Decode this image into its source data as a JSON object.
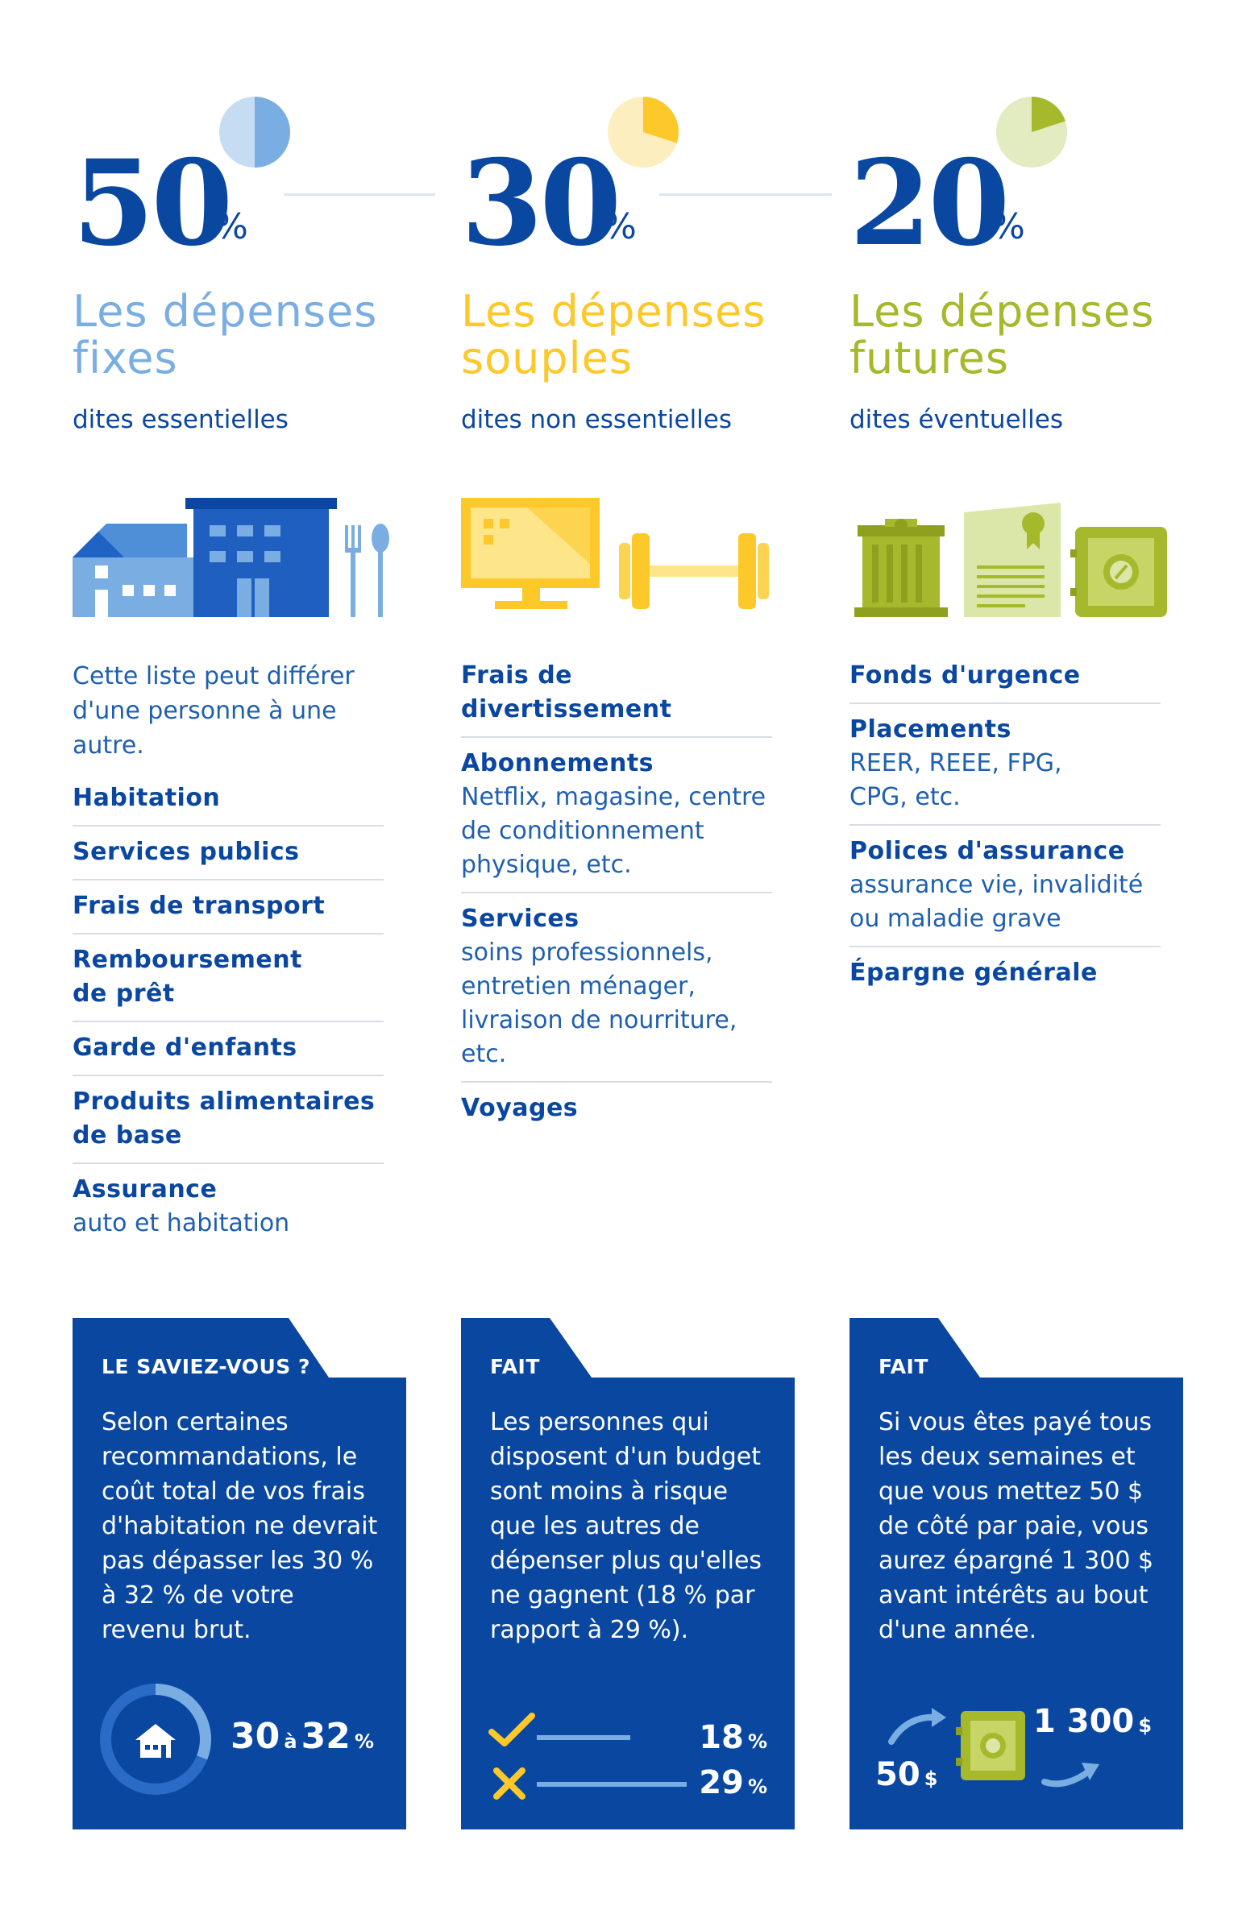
{
  "colors": {
    "navy": "#0a47a0",
    "blue_light": "#7aaee3",
    "yellow": "#fdc829",
    "green": "#a6b82b",
    "card_bg": "#0a47a0"
  },
  "columns": [
    {
      "percent": "50",
      "percent_sign": "%",
      "pie_fraction": 0.5,
      "title_line1": "Les dépenses",
      "title_line2": "fixes",
      "subtitle": "dites essentielles",
      "accent": "#7aaee3",
      "illustration": "house-building-cutlery-icon",
      "intro": "Cette liste peut différer d'une personne à une autre.",
      "items": [
        {
          "title": "Habitation",
          "desc": ""
        },
        {
          "title": "Services publics",
          "desc": ""
        },
        {
          "title": "Frais de transport",
          "desc": ""
        },
        {
          "title": "Remboursement de prêt",
          "desc": ""
        },
        {
          "title": "Garde d'enfants",
          "desc": ""
        },
        {
          "title": "Produits alimentaires de base",
          "desc": ""
        },
        {
          "title": "Assurance",
          "desc": "auto et habitation"
        }
      ],
      "card": {
        "label": "LE SAVIEZ-VOUS ?",
        "text": "Selon certaines recommandations, le coût total de vos frais d'habitation ne devrait pas dépasser les 30 % à 32 % de votre revenu brut.",
        "stat_from": "30",
        "stat_connector": "à",
        "stat_to": "32",
        "stat_sign": "%",
        "ring_fraction": 0.31
      }
    },
    {
      "percent": "30",
      "percent_sign": "%",
      "pie_fraction": 0.3,
      "title_line1": "Les dépenses",
      "title_line2": "souples",
      "subtitle": "dites non essentielles",
      "accent": "#fdc829",
      "illustration": "tv-dumbbell-icon",
      "intro": "",
      "items": [
        {
          "title": "Frais de divertissement",
          "desc": ""
        },
        {
          "title": "Abonnements",
          "desc": "Netflix, magasine, centre de conditionnement physique, etc."
        },
        {
          "title": "Services",
          "desc": "soins professionnels, entretien ménager, livraison de nourriture, etc."
        },
        {
          "title": "Voyages",
          "desc": ""
        }
      ],
      "card": {
        "label": "FAIT",
        "text": "Les personnes qui disposent d'un budget sont moins à risque que les autres de dépenser plus qu'elles ne gagnent (18 % par rapport à 29 %).",
        "stat_check_value": "18",
        "stat_cross_value": "29",
        "stat_sign": "%"
      }
    },
    {
      "percent": "20",
      "percent_sign": "%",
      "pie_fraction": 0.2,
      "title_line1": "Les dépenses",
      "title_line2": "futures",
      "subtitle": "dites éventuelles",
      "accent": "#a6b82b",
      "illustration": "bank-certificate-safe-icon",
      "intro": "",
      "items": [
        {
          "title": "Fonds d'urgence",
          "desc": ""
        },
        {
          "title": "Placements",
          "desc": "REER, REEE, FPG, CPG, etc."
        },
        {
          "title": "Polices d'assurance",
          "desc": "assurance vie, invalidité ou maladie grave"
        },
        {
          "title": "Épargne générale",
          "desc": ""
        }
      ],
      "card": {
        "label": "FAIT",
        "text": "Si vous êtes payé tous les deux semaines et que vous mettez 50 $ de côté par paie, vous aurez épargné 1 300 $ avant intérêts au bout d'une année.",
        "stat_in": "50",
        "stat_out": "1 300",
        "stat_sign": "$"
      }
    }
  ]
}
